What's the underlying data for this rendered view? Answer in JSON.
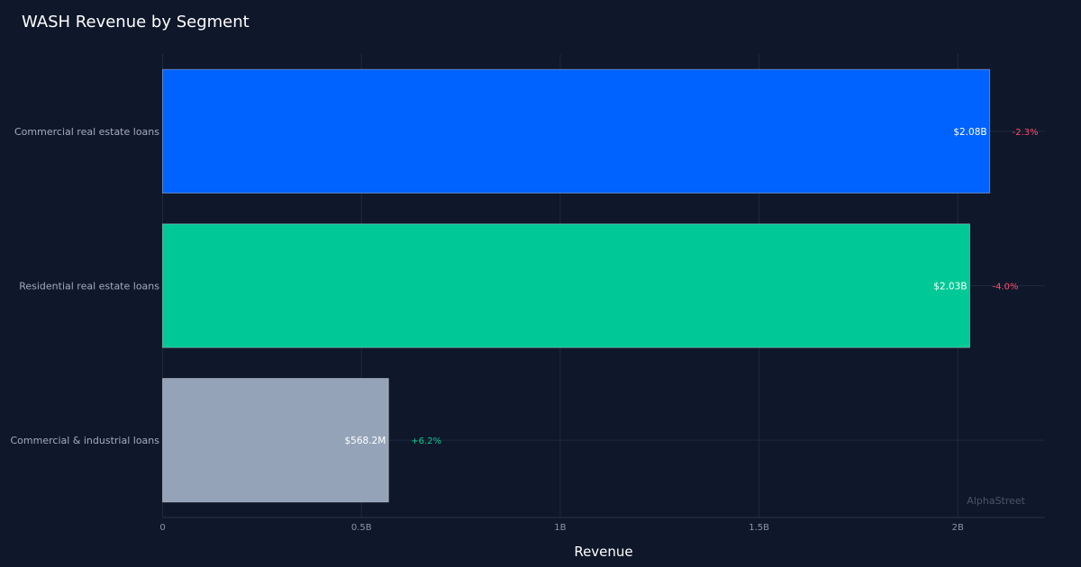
{
  "chart_data": {
    "type": "bar",
    "orientation": "horizontal",
    "title": "WASH Revenue by Segment",
    "xlabel": "Revenue",
    "ylabel": "",
    "xlim": [
      0,
      2.22
    ],
    "x_ticks": [
      0,
      0.5,
      1,
      1.5,
      2
    ],
    "x_tick_labels": [
      "0",
      "0.5B",
      "1B",
      "1.5B",
      "2B"
    ],
    "categories": [
      "Commercial real estate loans",
      "Residential real estate loans",
      "Commercial & industrial loans"
    ],
    "values": [
      2.08,
      2.03,
      0.5682
    ],
    "value_labels": [
      "$2.08B",
      "$2.03B",
      "$568.2M"
    ],
    "changes": [
      "-2.3%",
      "-4.0%",
      "+6.2%"
    ],
    "bar_colors": [
      "#0062ff",
      "#00c896",
      "#94a3b8"
    ],
    "change_colors": {
      "negative": "#ff4d6d",
      "positive": "#10c98f"
    },
    "grid": true,
    "watermark": "AlphaStreet"
  }
}
